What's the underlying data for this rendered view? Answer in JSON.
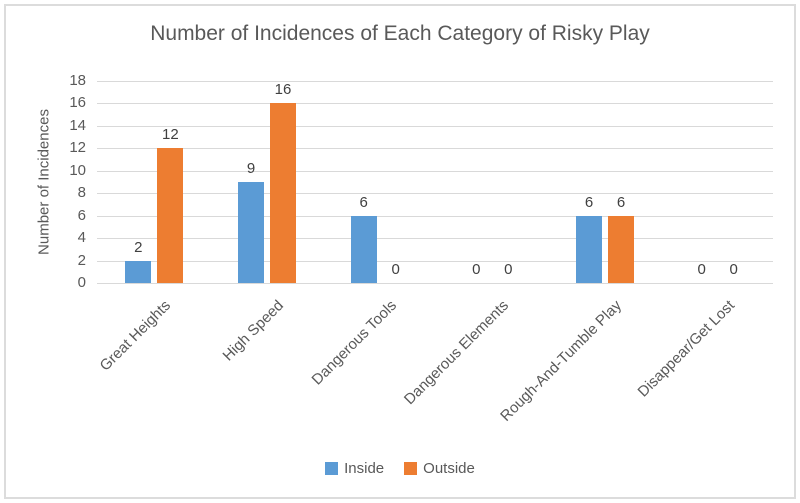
{
  "chart_data": {
    "type": "bar",
    "title": "Number of Incidences of Each Category of Risky Play",
    "ylabel": "Number of Incidences",
    "xlabel": "",
    "categories": [
      "Great Heights",
      "High Speed",
      "Dangerous Tools",
      "Dangerous Elements",
      "Rough-And-Tumble Play",
      "Disappear/Get Lost"
    ],
    "series": [
      {
        "name": "Inside",
        "color": "#5B9BD5",
        "values": [
          2,
          9,
          6,
          0,
          6,
          0
        ]
      },
      {
        "name": "Outside",
        "color": "#ED7D31",
        "values": [
          12,
          16,
          0,
          0,
          6,
          0
        ]
      }
    ],
    "data_labels_visible": true,
    "y_ticks": [
      0,
      2,
      4,
      6,
      8,
      10,
      12,
      14,
      16,
      18
    ],
    "ylim": [
      0,
      18
    ],
    "grid": true,
    "legend_position": "bottom-center",
    "colors": {
      "grid": "#D9D9D9",
      "axis_text": "#595959",
      "data_label_text": "#404040",
      "figure_border": "#DCDCDC",
      "background": "#FFFFFF"
    }
  }
}
